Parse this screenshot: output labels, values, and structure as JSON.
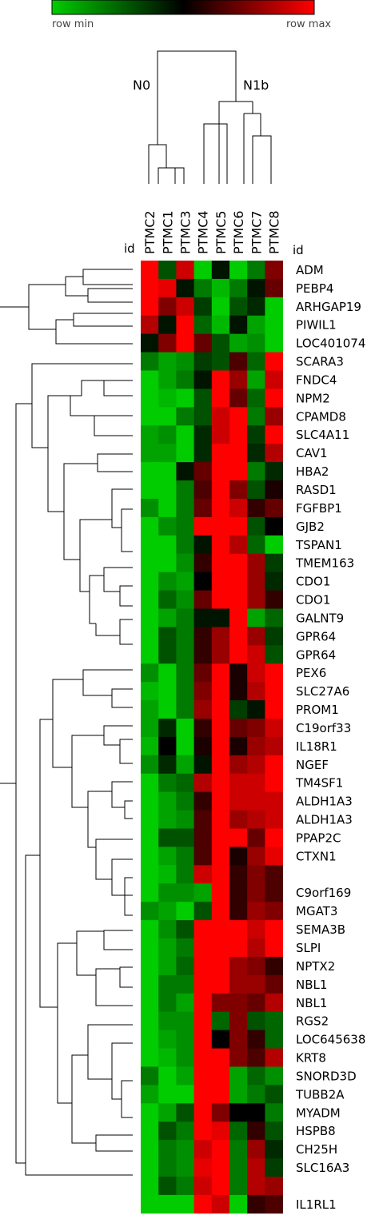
{
  "scale_bar": {
    "min_label": "row min",
    "max_label": "row max",
    "colors": [
      "#00cc00",
      "#000000",
      "#ff0000"
    ]
  },
  "column_dendrogram": {
    "group_labels": [
      "N0",
      "N1b"
    ]
  },
  "id_header": "id",
  "chart_data": {
    "type": "heatmap",
    "title": "",
    "columns": [
      "PTMC2",
      "PTMC1",
      "PTMC3",
      "PTMC4",
      "PTMC5",
      "PTMC6",
      "PTMC7",
      "PTMC8"
    ],
    "rows": [
      "ADM",
      "PEBP4",
      "ARHGAP19",
      "PIWIL1",
      "LOC401074",
      "SCARA3",
      "FNDC4",
      "NPM2",
      "CPAMD8",
      "SLC4A11",
      "CAV1",
      "HBA2",
      "RASD1",
      "FGFBP1",
      "GJB2",
      "TSPAN1",
      "TMEM163",
      "CDO1",
      "CDO1",
      "GALNT9",
      "GPR64",
      "GPR64",
      "PEX6",
      "SLC27A6",
      "PROM1",
      "C19orf33",
      "IL18R1",
      "NGEF",
      "TM4SF1",
      "ALDH1A3",
      "ALDH1A3",
      "PPAP2C",
      "CTXN1",
      "",
      "C9orf169",
      "MGAT3",
      "SEMA3B",
      "SLPI",
      "NPTX2",
      "NBL1",
      "NBL1",
      "RGS2",
      "LOC645638",
      "KRT8",
      "SNORD3D",
      "TUBB2A",
      "MYADM",
      "HSPB8",
      "CH25H",
      "SLC16A3",
      "",
      "IL1RL1"
    ],
    "value_scale": "row-normalized, -1 = row min (green), 0 = black, 1 = row max (red)",
    "values": [
      [
        1.0,
        -0.4,
        0.8,
        -1.0,
        -0.1,
        -1.0,
        -0.6,
        0.5
      ],
      [
        1.0,
        0.9,
        -0.1,
        -0.6,
        -0.9,
        -0.6,
        -0.1,
        0.4
      ],
      [
        1.0,
        0.5,
        0.8,
        -0.3,
        -1.0,
        -0.4,
        -0.2,
        -1.0
      ],
      [
        0.7,
        -0.1,
        1.0,
        -0.5,
        -0.9,
        -0.1,
        -0.8,
        -1.0
      ],
      [
        -0.1,
        0.5,
        1.0,
        0.4,
        -0.4,
        -0.8,
        -0.7,
        -1.0
      ],
      [
        -0.6,
        -0.8,
        -0.7,
        -0.3,
        -0.4,
        0.3,
        -0.5,
        1.0
      ],
      [
        -1.0,
        -0.8,
        -0.6,
        -0.1,
        1.0,
        0.6,
        -0.8,
        0.8
      ],
      [
        -1.0,
        -0.9,
        -1.0,
        -0.4,
        1.0,
        0.4,
        -0.5,
        1.0
      ],
      [
        -1.0,
        -1.0,
        -0.6,
        -0.4,
        0.8,
        1.0,
        -0.6,
        0.6
      ],
      [
        -0.8,
        -0.7,
        -1.0,
        -0.2,
        0.8,
        1.0,
        -0.3,
        1.0
      ],
      [
        -0.8,
        -0.8,
        -1.0,
        -0.2,
        1.0,
        1.0,
        -0.2,
        0.7
      ],
      [
        -1.0,
        -1.0,
        -0.1,
        0.4,
        1.0,
        1.0,
        -0.6,
        -0.2
      ],
      [
        -1.0,
        -1.0,
        -0.6,
        0.3,
        1.0,
        0.5,
        -0.4,
        0.1
      ],
      [
        -0.7,
        -1.0,
        -0.6,
        0.4,
        1.0,
        0.8,
        0.2,
        0.4
      ],
      [
        -1.0,
        -0.7,
        -0.6,
        1.0,
        1.0,
        1.0,
        -0.4,
        0.0
      ],
      [
        -1.0,
        -1.0,
        -0.6,
        -0.1,
        1.0,
        0.7,
        -0.5,
        -1.0
      ],
      [
        -1.0,
        -1.0,
        -0.7,
        0.2,
        1.0,
        1.0,
        0.6,
        -0.3
      ],
      [
        -1.0,
        -0.7,
        -0.8,
        0.0,
        1.0,
        1.0,
        0.6,
        -0.2
      ],
      [
        -1.0,
        -0.5,
        -0.7,
        0.4,
        1.0,
        1.0,
        0.6,
        0.2
      ],
      [
        -1.0,
        -0.8,
        -0.6,
        -0.1,
        -0.1,
        1.0,
        -0.8,
        -0.5
      ],
      [
        -1.0,
        -0.4,
        -0.6,
        0.2,
        0.6,
        1.0,
        0.6,
        -0.3
      ],
      [
        -1.0,
        -0.4,
        -0.6,
        0.2,
        0.6,
        1.0,
        0.8,
        -0.4
      ],
      [
        -0.7,
        -1.0,
        -0.6,
        0.4,
        1.0,
        0.1,
        0.8,
        1.0
      ],
      [
        -0.9,
        -1.0,
        -0.6,
        0.5,
        1.0,
        0.1,
        0.7,
        1.0
      ],
      [
        -0.8,
        -1.0,
        -0.6,
        0.6,
        1.0,
        -0.3,
        -0.1,
        1.0
      ],
      [
        -0.8,
        -0.2,
        -1.0,
        0.2,
        1.0,
        0.4,
        0.5,
        0.8
      ],
      [
        -0.9,
        0.0,
        -1.0,
        0.1,
        1.0,
        0.1,
        0.6,
        0.7
      ],
      [
        -0.7,
        -0.2,
        -0.8,
        -0.1,
        1.0,
        0.6,
        0.7,
        1.0
      ],
      [
        -1.0,
        -0.6,
        -0.5,
        0.7,
        1.0,
        0.8,
        0.8,
        1.0
      ],
      [
        -1.0,
        -0.8,
        -0.6,
        0.2,
        1.0,
        0.8,
        0.8,
        0.8
      ],
      [
        -1.0,
        -0.8,
        -0.7,
        0.3,
        1.0,
        0.6,
        0.7,
        0.8
      ],
      [
        -1.0,
        -0.4,
        -0.4,
        0.3,
        1.0,
        1.0,
        0.4,
        1.0
      ],
      [
        -1.0,
        -0.8,
        -0.6,
        0.3,
        1.0,
        0.1,
        0.6,
        0.9
      ],
      [
        -1.0,
        -0.9,
        -0.6,
        0.8,
        1.0,
        0.2,
        0.5,
        0.3
      ],
      [
        -1.0,
        -0.7,
        -0.7,
        -0.8,
        1.0,
        0.2,
        0.5,
        0.3
      ],
      [
        -0.7,
        -0.8,
        -1.0,
        -0.4,
        1.0,
        0.2,
        0.6,
        0.5
      ],
      [
        -1.0,
        -0.7,
        -0.4,
        1.0,
        1.0,
        1.0,
        0.8,
        1.0
      ],
      [
        -1.0,
        -0.8,
        -0.6,
        1.0,
        1.0,
        1.0,
        0.7,
        1.0
      ],
      [
        -1.0,
        -0.8,
        -0.5,
        1.0,
        1.0,
        0.6,
        0.5,
        0.2
      ],
      [
        -1.0,
        -0.6,
        -0.6,
        1.0,
        1.0,
        0.6,
        0.6,
        0.4
      ],
      [
        -1.0,
        -0.6,
        -0.8,
        1.0,
        0.5,
        0.5,
        0.4,
        0.7
      ],
      [
        -1.0,
        -0.7,
        -0.7,
        1.0,
        -0.5,
        0.5,
        -0.4,
        -0.5
      ],
      [
        -1.0,
        -0.8,
        -0.7,
        1.0,
        0.0,
        0.5,
        0.2,
        -0.5
      ],
      [
        -1.0,
        -0.9,
        -0.7,
        1.0,
        1.0,
        0.5,
        0.3,
        0.7
      ],
      [
        -0.6,
        -1.0,
        -0.8,
        1.0,
        1.0,
        -0.8,
        -0.5,
        -0.7
      ],
      [
        -0.8,
        -1.0,
        -1.0,
        1.0,
        1.0,
        -0.8,
        -0.6,
        -0.4
      ],
      [
        -1.0,
        -0.8,
        -0.4,
        1.0,
        0.5,
        0.0,
        0.0,
        -0.6
      ],
      [
        -1.0,
        -0.4,
        -0.6,
        1.0,
        0.9,
        -0.5,
        0.2,
        -0.4
      ],
      [
        -1.0,
        -0.6,
        -0.7,
        0.8,
        1.0,
        -0.6,
        0.6,
        -0.2
      ],
      [
        -1.0,
        -0.6,
        -0.7,
        0.9,
        1.0,
        -0.6,
        0.7,
        -0.3
      ],
      [
        -1.0,
        -0.4,
        -0.6,
        0.8,
        1.0,
        -0.6,
        0.7,
        0.6
      ],
      [
        -1.0,
        -1.0,
        -1.0,
        1.0,
        0.8,
        -1.0,
        0.2,
        0.3
      ]
    ]
  }
}
